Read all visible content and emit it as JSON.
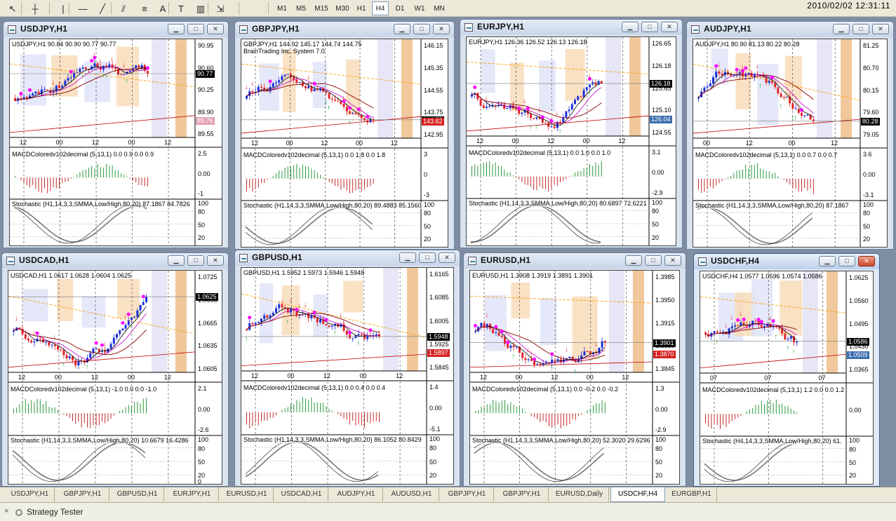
{
  "toolbar": {
    "tools": [
      {
        "name": "cursor-icon",
        "glyph": "↖"
      },
      {
        "name": "crosshair-icon",
        "glyph": "┼"
      },
      {
        "name": "vertical-line-icon",
        "glyph": "|"
      },
      {
        "name": "horizontal-line-icon",
        "glyph": "—"
      },
      {
        "name": "trendline-icon",
        "glyph": "╱"
      },
      {
        "name": "equidistant-channel-icon",
        "glyph": "⫽"
      },
      {
        "name": "fibonacci-icon",
        "glyph": "≡"
      },
      {
        "name": "text-icon",
        "glyph": "A"
      },
      {
        "name": "text-label-icon",
        "glyph": "T"
      },
      {
        "name": "grid-lines-icon",
        "glyph": "▥"
      },
      {
        "name": "arrows-icon",
        "glyph": "⇲"
      }
    ],
    "timeframes": [
      "M1",
      "M5",
      "M15",
      "M30",
      "H1",
      "H4",
      "D1",
      "W1",
      "MN"
    ],
    "active_timeframe": "H4",
    "clock": "2010/02/02 12:31:11"
  },
  "windows": [
    {
      "title": "USDJPY,H1",
      "info": "USDJPY,H1  90.84 90.90 90.77 90.77",
      "sub": "",
      "scale": [
        "90.95",
        "90.60",
        "90.25",
        "89.90",
        "89.55"
      ],
      "bid": "90.77",
      "tag": "89.76",
      "tag_color": "#e3a0b0",
      "time": [
        "12",
        "00",
        "12",
        "00",
        "12"
      ],
      "macd": "MACDColoredv102decimal (5,13,1) 0.0 0.9 0.0 0.9",
      "macd_scale": [
        "2.5",
        "0.00",
        "-1"
      ],
      "stoch": "Stochastic (H1,14,3,3,SMMA,Low/High,80,20) 87.1867 84.7826",
      "stoch_scale": [
        "100",
        "80",
        "50",
        "20"
      ],
      "seed": 3
    },
    {
      "title": "GBPJPY,H1",
      "info": "GBPJPY,H1  144.92 145.17 144.74 144.75",
      "sub": "BrainTrading Inc. System 7.0",
      "scale": [
        "146.15",
        "145.35",
        "144.55",
        "143.75",
        "142.95"
      ],
      "bid": "144.75",
      "tag": "143.62",
      "tag_color": "#d62020",
      "time": [
        "12",
        "00",
        "12",
        "00",
        "12"
      ],
      "macd": "MACDColoredv102decimal (5,13,1) 0.0 1.8 0.0 1.8",
      "macd_scale": [
        "3",
        "0",
        "-3"
      ],
      "stoch": "Stochastic (H1,14,3,3,SMMA,Low/High,80,20) 89.4883 85.1560",
      "stoch_scale": [
        "100",
        "80",
        "50",
        "20"
      ],
      "seed": 5
    },
    {
      "title": "EURJPY,H1",
      "info": "EURJPY,H1  126.36 126.52 126.13 126.18",
      "sub": "",
      "scale": [
        "126.65",
        "126.18",
        "125.65",
        "125.10",
        "124.55"
      ],
      "bid": "126.18",
      "tag": "126.04",
      "tag_color": "#3a6db0",
      "time": [
        "12",
        "00",
        "12",
        "00",
        "12"
      ],
      "macd": "MACDColoredv102decimal (5,13,1) 0.0 1.0 0.0 1.0",
      "macd_scale": [
        "3.1",
        "0.00",
        "-2.9"
      ],
      "stoch": "Stochastic (H1,14,3,3,SMMA,Low/High,80,20) 80.6897 72.6221",
      "stoch_scale": [
        "100",
        "80",
        "50",
        "20"
      ],
      "seed": 7
    },
    {
      "title": "AUDJPY,H1",
      "info": "AUDJPY,H1  80.90 81.13 80.22 80.28",
      "sub": "",
      "scale": [
        "81.25",
        "80.70",
        "80.15",
        "79.60",
        "79.05"
      ],
      "bid": "80.28",
      "tag": "",
      "tag_color": "#000",
      "time": [
        "00",
        "12",
        "00",
        "12"
      ],
      "macd": "MACDColoredv102decimal (5,13,1) 0.0 0.7 0.0 0.7",
      "macd_scale": [
        "3.6",
        "0.00",
        "-3.1"
      ],
      "stoch": "Stochastic (H1,14,3,3,SMMA,Low/High,80,20) 87.1867",
      "stoch_scale": [
        "100",
        "80",
        "50",
        "20"
      ],
      "seed": 11
    },
    {
      "title": "USDCAD,H1",
      "info": "USDCAD,H1  1.0617 1.0628 1.0604 1.0625",
      "sub": "",
      "scale": [
        "1.0725",
        "1.0695",
        "1.0665",
        "1.0635",
        "1.0605"
      ],
      "bid": "1.0625",
      "tag": "",
      "tag_color": "#000",
      "time": [
        "12",
        "00",
        "12",
        "00",
        "12"
      ],
      "macd": "MACDColoredv102decimal (5,13,1) -1.0 0.0 0.0 -1.0",
      "macd_scale": [
        "2.1",
        "0.00",
        "-2.6"
      ],
      "stoch": "Stochastic (H1,14,3,3,SMMA,Low/High,80,20) 10.6679 16.4286",
      "stoch_scale": [
        "100",
        "80",
        "50",
        "20",
        "0"
      ],
      "seed": 13
    },
    {
      "title": "GBPUSD,H1",
      "info": "GBPUSD,H1  1.5952 1.5973 1.5946 1.5948",
      "sub": "",
      "scale": [
        "1.6165",
        "1.6085",
        "1.6005",
        "1.5925",
        "1.5845"
      ],
      "bid": "1.5948",
      "tag": "1.5897",
      "tag_color": "#d62020",
      "time": [
        "12",
        "00",
        "12",
        "00",
        "12"
      ],
      "macd": "MACDColoredv102decimal (5,13,1) 0.0 0.4 0.0 0.4",
      "macd_scale": [
        "1.4",
        "0.00",
        "-5.1"
      ],
      "stoch": "Stochastic (H1,14,3,3,SMMA,Low/High,80,20) 86.1052 80.8429",
      "stoch_scale": [
        "100",
        "80",
        "50",
        "20"
      ],
      "seed": 17
    },
    {
      "title": "EURUSD,H1",
      "info": "EURUSD,H1  1.3908 1.3919 1.3891 1.3901",
      "sub": "",
      "scale": [
        "1.3985",
        "1.3950",
        "1.3915",
        "1.3880",
        "1.3845"
      ],
      "bid": "1.3901",
      "tag": "1.3870",
      "tag_color": "#d62020",
      "time": [
        "12",
        "00",
        "12",
        "00",
        "12"
      ],
      "macd": "MACDColoredv102decimal (5,13,1) 0.0 -0.2 0.0 -0.2",
      "macd_scale": [
        "1.3",
        "0.00",
        "-2.9"
      ],
      "stoch": "Stochastic (H1,14,3,3,SMMA,Low/High,80,20) 52.3020 29.6296",
      "stoch_scale": [
        "100",
        "80",
        "50",
        "20"
      ],
      "seed": 19
    },
    {
      "title": "USDCHF,H4",
      "info": "USDCHF,H4  1.0577 1.0596 1.0574 1.0586",
      "sub": "",
      "scale": [
        "1.0625",
        "1.0560",
        "1.0495",
        "1.0430",
        "1.0365"
      ],
      "bid": "1.0586",
      "tag": "1.0509",
      "tag_color": "#3a6db0",
      "time": [
        "07",
        "07",
        "07"
      ],
      "macd": "MACDColoredv102decimal (5,13,1) 1.2 0.0 0.0 1.2",
      "macd_scale": [
        "",
        "0.00",
        ""
      ],
      "stoch": "Stochastic (H4,14,3,3,SMMA,Low/High,80,20) 61.",
      "stoch_scale": [
        "100",
        "80",
        "50",
        "20"
      ],
      "seed": 23
    }
  ],
  "tabs": [
    "USDJPY,H1",
    "GBPJPY,H1",
    "GBPUSD,H1",
    "EURJPY,H1",
    "EURUSD,H1",
    "USDCAD,H1",
    "AUDJPY,H1",
    "AUDUSD,H1",
    "GBPJPY,H1",
    "GBPJPY,H1",
    "EURUSD,Daily",
    "USDCHF,H4",
    "EURGBP,H1"
  ],
  "active_tab": "USDCHF,H4",
  "tester": {
    "label": "Strategy Tester"
  }
}
